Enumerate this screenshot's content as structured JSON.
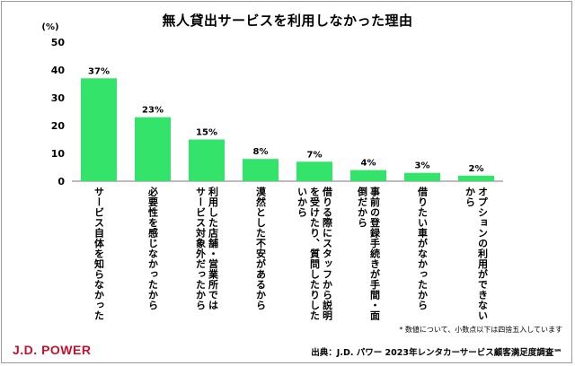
{
  "page": {
    "title": "無人貸出サービスを利用しなかった理由",
    "note": "* 数値について、小数点以下は四捨五入しています",
    "source": "出典：J.D. パワー 2023年レンタカーサービス顧客満足度調査℠",
    "logo": "J.D. POWER"
  },
  "chart_data": {
    "type": "bar",
    "title": "無人貸出サービスを利用しなかった理由",
    "ylabel": "(%)",
    "ylim": [
      0,
      50
    ],
    "yticks": [
      0,
      10,
      20,
      30,
      40,
      50
    ],
    "grid": false,
    "bar_color": "#33e36a",
    "categories": [
      "サービス自体を知らなかった",
      "必要性を感じなかったから",
      "利用した店舗・営業所ではサービス対象外だったから",
      "漠然とした不安があるから",
      "借りる際にスタッフから説明を受けたり、質問したりしたいから",
      "事前の登録手続きが手間・面倒だから",
      "借りたい車がなかったから",
      "オプションの利用ができないから"
    ],
    "category_lines": [
      [
        "サービス自体を知らなかった"
      ],
      [
        "必要性を感じなかったから"
      ],
      [
        "利用した店舗・営業所では",
        "サービス対象外だったから"
      ],
      [
        "漠然とした不安があるから"
      ],
      [
        "借りる際にスタッフから説明",
        "を受けたり、質問したりした",
        "いから"
      ],
      [
        "事前の登録手続きが手間・面",
        "倒だから"
      ],
      [
        "借りたい車がなかったから"
      ],
      [
        "オプションの利用ができない",
        "から"
      ]
    ],
    "values": [
      37,
      23,
      15,
      8,
      7,
      4,
      3,
      2
    ],
    "data_labels": [
      "37%",
      "23%",
      "15%",
      "8%",
      "7%",
      "4%",
      "3%",
      "2%"
    ]
  }
}
